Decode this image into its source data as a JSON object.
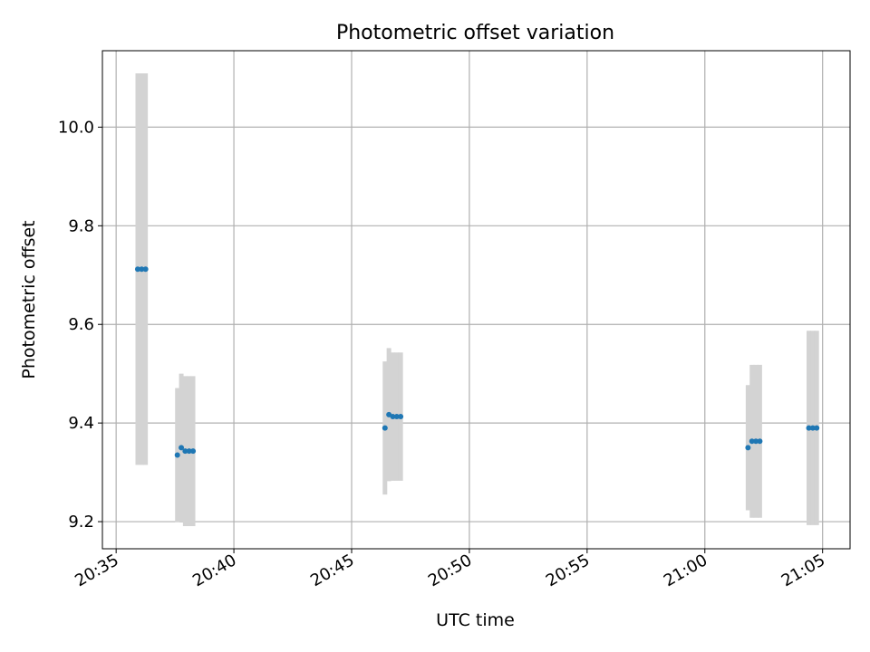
{
  "chart_data": {
    "type": "scatter",
    "title": "Photometric offset variation",
    "xlabel": "UTC time",
    "ylabel": "Photometric offset",
    "xlim": [
      "20:34:25",
      "21:06:10"
    ],
    "ylim": [
      9.145,
      10.155
    ],
    "x_ticks": [
      "20:35",
      "20:40",
      "20:45",
      "20:50",
      "20:55",
      "21:00",
      "21:05"
    ],
    "y_ticks": [
      "9.2",
      "9.4",
      "9.6",
      "9.8",
      "10.0"
    ],
    "grid": true,
    "colors": {
      "point": "#1f77b4",
      "errorbar": "#d3d3d3",
      "grid": "#b0b0b0"
    },
    "points": [
      {
        "time": "20:35:55",
        "y": 9.712,
        "yerr": 0.397
      },
      {
        "time": "20:36:05",
        "y": 9.712,
        "yerr": 0.397
      },
      {
        "time": "20:36:15",
        "y": 9.712,
        "yerr": 0.397
      },
      {
        "time": "20:37:36",
        "y": 9.335,
        "yerr": 0.136
      },
      {
        "time": "20:37:46",
        "y": 9.35,
        "yerr": 0.15
      },
      {
        "time": "20:37:56",
        "y": 9.343,
        "yerr": 0.152
      },
      {
        "time": "20:38:06",
        "y": 9.343,
        "yerr": 0.152
      },
      {
        "time": "20:38:16",
        "y": 9.343,
        "yerr": 0.152
      },
      {
        "time": "20:46:25",
        "y": 9.39,
        "yerr": 0.135
      },
      {
        "time": "20:46:35",
        "y": 9.417,
        "yerr": 0.135
      },
      {
        "time": "20:46:45",
        "y": 9.413,
        "yerr": 0.13
      },
      {
        "time": "20:46:55",
        "y": 9.413,
        "yerr": 0.13
      },
      {
        "time": "20:47:05",
        "y": 9.413,
        "yerr": 0.13
      },
      {
        "time": "21:01:50",
        "y": 9.35,
        "yerr": 0.127
      },
      {
        "time": "21:02:00",
        "y": 9.363,
        "yerr": 0.155
      },
      {
        "time": "21:02:10",
        "y": 9.363,
        "yerr": 0.155
      },
      {
        "time": "21:02:20",
        "y": 9.363,
        "yerr": 0.155
      },
      {
        "time": "21:04:25",
        "y": 9.39,
        "yerr": 0.197
      },
      {
        "time": "21:04:35",
        "y": 9.39,
        "yerr": 0.197
      },
      {
        "time": "21:04:45",
        "y": 9.39,
        "yerr": 0.197
      }
    ]
  }
}
